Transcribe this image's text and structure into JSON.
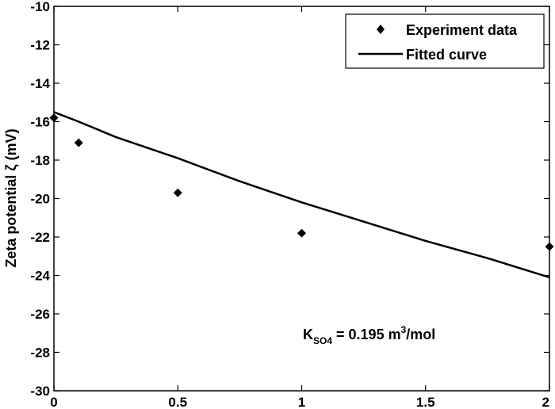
{
  "chart_data": {
    "type": "scatter",
    "title": "",
    "xlabel": "",
    "ylabel": "Zeta potential ζ (mV)",
    "xlim": [
      0,
      2
    ],
    "ylim": [
      -30,
      -10
    ],
    "xticks": [
      "0",
      "0.5",
      "1",
      "1.5",
      "2"
    ],
    "yticks": [
      "-30",
      "-28",
      "-26",
      "-24",
      "-22",
      "-20",
      "-18",
      "-16",
      "-14",
      "-12",
      "-10"
    ],
    "grid": false,
    "legend_position": "top-right",
    "series": [
      {
        "name": "Experiment data",
        "marker": "diamond",
        "color": "#000000",
        "x": [
          0,
          0.1,
          0.5,
          1,
          2
        ],
        "y": [
          -15.8,
          -17.1,
          -19.7,
          -21.8,
          -22.5
        ]
      },
      {
        "name": "Fitted curve",
        "style": "line",
        "color": "#000000",
        "x": [
          0,
          0.1,
          0.25,
          0.5,
          0.75,
          1,
          1.25,
          1.5,
          1.75,
          2
        ],
        "y": [
          -15.5,
          -16.0,
          -16.8,
          -17.9,
          -19.1,
          -20.2,
          -21.2,
          -22.2,
          -23.1,
          -24.1
        ]
      }
    ],
    "annotation": {
      "main": "K",
      "subscript": "SO4",
      "middle": " = 0.195 m",
      "superscript": "3",
      "tail": "/mol"
    }
  }
}
